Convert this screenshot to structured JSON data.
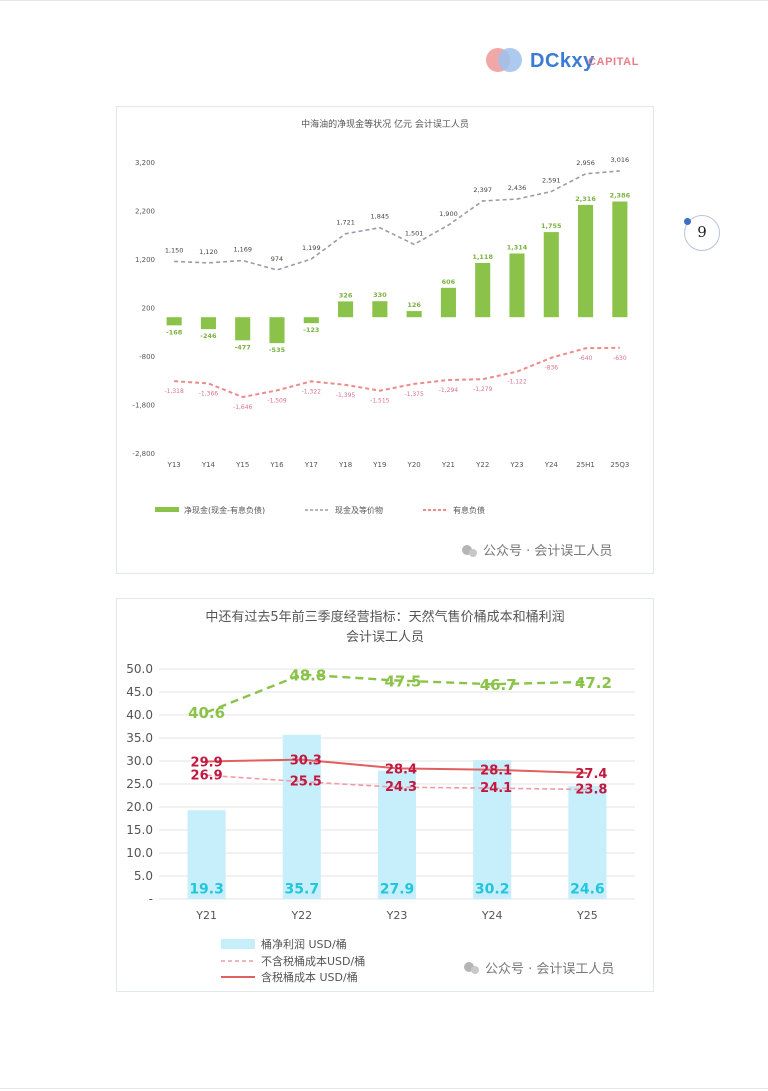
{
  "branding": {
    "logo_text": "DCkxy",
    "logo_sub": "CAPITAL",
    "page_number": "9",
    "watermark": "公众号 · 会计误工人员"
  },
  "colors": {
    "green": "#8bc34a",
    "green_dash": "#8bc34a",
    "gray_dash": "#9a9cac",
    "red_dash": "#ee8a8a",
    "bar_light_blue": "#c6eefb",
    "red_line": "#e0605f",
    "pink_dash": "#f19aa6",
    "cyan_label": "#22c6dc",
    "crimson_label": "#c2173f"
  },
  "chart_data": [
    {
      "type": "bar",
      "title": "中海油的净现金等状况 亿元 会计误工人员",
      "categories": [
        "Y13",
        "Y14",
        "Y15",
        "Y16",
        "Y17",
        "Y18",
        "Y19",
        "Y20",
        "Y21",
        "Y22",
        "Y23",
        "Y24",
        "25H1",
        "25Q3"
      ],
      "ylim": [
        -2800,
        3200
      ],
      "yticks": [
        -2800,
        -1800,
        -800,
        200,
        1200,
        2200,
        3200
      ],
      "ytick_labels": [
        "-2,800",
        "-1,800",
        "-800",
        "200",
        "1,200",
        "2,200",
        "3,200"
      ],
      "series": [
        {
          "name": "净现金(现金-有息负债)",
          "kind": "bar",
          "values": [
            -168,
            -246,
            -477,
            -535,
            -123,
            326,
            330,
            126,
            606,
            1118,
            1314,
            1755,
            2316,
            2386
          ],
          "labels": [
            "-168",
            "-246",
            "-477",
            "-535",
            "-123",
            "326",
            "330",
            "126",
            "606",
            "1,118",
            "1,314",
            "1,755",
            "2,316",
            "2,386"
          ]
        },
        {
          "name": "现金及等价物",
          "kind": "dashed-line",
          "values": [
            1150,
            1120,
            1169,
            974,
            1199,
            1721,
            1845,
            1501,
            1900,
            2397,
            2436,
            2591,
            2956,
            3016
          ],
          "labels": [
            "1,150",
            "1,120",
            "1,169",
            "974",
            "1,199",
            "1,721",
            "1,845",
            "1,501",
            "1,900",
            "2,397",
            "2,436",
            "2,591",
            "2,956",
            "3,016"
          ]
        },
        {
          "name": "有息负债",
          "kind": "dashed-line",
          "values": [
            -1318,
            -1366,
            -1646,
            -1509,
            -1322,
            -1395,
            -1515,
            -1375,
            -1294,
            -1279,
            -1122,
            -836,
            -640,
            -630
          ],
          "labels": [
            "-1,318",
            "-1,366",
            "-1,646",
            "-1,509",
            "-1,322",
            "-1,395",
            "-1,515",
            "-1,375",
            "-1,294",
            "-1,279",
            "-1,122",
            "-836",
            "-640",
            "-630"
          ]
        }
      ],
      "legend_position": "bottom",
      "grid": false
    },
    {
      "type": "bar",
      "title": "中还有过去5年前三季度经营指标：天然气售价桶成本和桶利润",
      "subtitle": "会计误工人员",
      "categories": [
        "Y21",
        "Y22",
        "Y23",
        "Y24",
        "Y25"
      ],
      "ylim": [
        0,
        50
      ],
      "yticks": [
        0,
        5,
        10,
        15,
        20,
        25,
        30,
        35,
        40,
        45,
        50
      ],
      "ytick_labels": [
        "-",
        "5.0",
        "10.0",
        "15.0",
        "20.0",
        "25.0",
        "30.0",
        "35.0",
        "40.0",
        "45.0",
        "50.0"
      ],
      "series": [
        {
          "name": "桶净利润 USD/桶",
          "kind": "bar",
          "values": [
            19.3,
            35.7,
            27.9,
            30.2,
            24.6
          ],
          "labels": [
            "19.3",
            "35.7",
            "27.9",
            "30.2",
            "24.6"
          ]
        },
        {
          "name": "不含税桶成本USD/桶",
          "kind": "dashed-line",
          "values": [
            26.9,
            25.5,
            24.3,
            24.1,
            23.8
          ],
          "labels": [
            "26.9",
            "25.5",
            "24.3",
            "24.1",
            "23.8"
          ]
        },
        {
          "name": "含税桶成本 USD/桶",
          "kind": "line",
          "values": [
            29.9,
            30.3,
            28.4,
            28.1,
            27.4
          ],
          "labels": [
            "29.9",
            "30.3",
            "28.4",
            "28.1",
            "27.4"
          ]
        },
        {
          "kind": "dashed-line-green",
          "values": [
            40.6,
            48.8,
            47.5,
            46.7,
            47.2
          ],
          "labels": [
            "40.6",
            "48.8",
            "47.5",
            "46.7",
            "47.2"
          ]
        }
      ],
      "legend_position": "bottom-left",
      "grid": true
    }
  ]
}
